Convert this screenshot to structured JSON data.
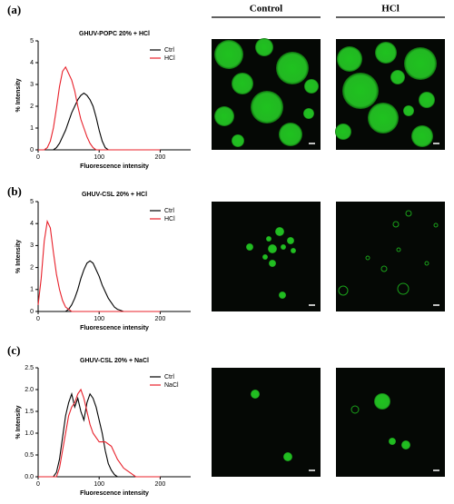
{
  "figure": {
    "panel_labels": [
      "(a)",
      "(b)",
      "(c)"
    ],
    "column_headers": [
      "Control",
      "HCl"
    ]
  },
  "chart_data": [
    {
      "type": "line",
      "title": "GHUV-POPC 20% + HCl",
      "x_label": "Fluorescence intensity",
      "y_label": "% Intensity",
      "xlim": [
        0,
        250
      ],
      "xticks": [
        0,
        100,
        200
      ],
      "ylim": [
        0,
        5
      ],
      "yticks": [
        0,
        1,
        2,
        3,
        4,
        5
      ],
      "legend": "upper right",
      "x": [
        0,
        5,
        10,
        15,
        20,
        25,
        30,
        35,
        40,
        45,
        50,
        55,
        60,
        65,
        70,
        75,
        80,
        85,
        90,
        95,
        100,
        105,
        110,
        115,
        120,
        125,
        130,
        135,
        140,
        145,
        150,
        155,
        160,
        165,
        170,
        175,
        180,
        185,
        190,
        195,
        200
      ],
      "series": [
        {
          "name": "Ctrl",
          "color": "#000000",
          "values": [
            0,
            0,
            0,
            0,
            0,
            0,
            0.1,
            0.3,
            0.6,
            0.9,
            1.3,
            1.7,
            2.0,
            2.3,
            2.5,
            2.6,
            2.5,
            2.3,
            2.0,
            1.5,
            0.9,
            0.4,
            0.1,
            0,
            0,
            0,
            0,
            0,
            0,
            0,
            0,
            0,
            0,
            0,
            0,
            0,
            0,
            0,
            0,
            0,
            0
          ]
        },
        {
          "name": "HCl",
          "color": "#e8202a",
          "values": [
            0,
            0,
            0,
            0.1,
            0.4,
            1.0,
            1.9,
            2.9,
            3.6,
            3.8,
            3.5,
            3.2,
            2.7,
            2.0,
            1.4,
            1.0,
            0.6,
            0.3,
            0.1,
            0,
            0,
            0,
            0,
            0,
            0,
            0,
            0,
            0,
            0,
            0,
            0,
            0,
            0,
            0,
            0,
            0,
            0,
            0,
            0,
            0,
            0
          ]
        }
      ]
    },
    {
      "type": "line",
      "title": "GHUV-CSL 20% + HCl",
      "x_label": "Fluorescence intensity",
      "y_label": "% Intensity",
      "xlim": [
        0,
        250
      ],
      "xticks": [
        0,
        100,
        200
      ],
      "ylim": [
        0,
        5
      ],
      "yticks": [
        0,
        1,
        2,
        3,
        4,
        5
      ],
      "legend": "upper right",
      "x": [
        0,
        5,
        10,
        15,
        20,
        25,
        30,
        35,
        40,
        45,
        50,
        55,
        60,
        65,
        70,
        75,
        80,
        85,
        90,
        95,
        100,
        105,
        110,
        115,
        120,
        125,
        130,
        135,
        140,
        145,
        150,
        155,
        160,
        165,
        170,
        175,
        180,
        185,
        190,
        195,
        200
      ],
      "series": [
        {
          "name": "Ctrl",
          "color": "#000000",
          "values": [
            0,
            0,
            0,
            0,
            0,
            0,
            0,
            0,
            0,
            0,
            0.1,
            0.3,
            0.6,
            1.0,
            1.5,
            1.9,
            2.2,
            2.3,
            2.2,
            1.9,
            1.6,
            1.2,
            0.9,
            0.6,
            0.4,
            0.2,
            0.1,
            0.05,
            0,
            0,
            0,
            0,
            0,
            0,
            0,
            0,
            0,
            0,
            0,
            0,
            0
          ]
        },
        {
          "name": "HCl",
          "color": "#e8202a",
          "values": [
            0.3,
            1.5,
            3.2,
            4.1,
            3.8,
            2.7,
            1.7,
            1.0,
            0.5,
            0.2,
            0.1,
            0,
            0,
            0,
            0,
            0,
            0,
            0,
            0,
            0,
            0,
            0,
            0,
            0,
            0,
            0,
            0,
            0,
            0,
            0,
            0,
            0,
            0,
            0,
            0,
            0,
            0,
            0,
            0,
            0,
            0
          ]
        }
      ]
    },
    {
      "type": "line",
      "title": "GHUV-CSL 20% + NaCl",
      "x_label": "Fluorescence intensity",
      "y_label": "% Intensity",
      "xlim": [
        0,
        250
      ],
      "xticks": [
        0,
        100,
        200
      ],
      "ylim": [
        0,
        2.5
      ],
      "yticks": [
        {
          "value": 0,
          "label": "0.0"
        },
        0.5,
        {
          "value": 1,
          "label": "1.0"
        },
        1.5,
        {
          "value": 2,
          "label": "2.0"
        },
        2.5
      ],
      "legend": "upper right",
      "x": [
        0,
        5,
        10,
        15,
        20,
        25,
        30,
        35,
        40,
        45,
        50,
        55,
        60,
        65,
        70,
        75,
        80,
        85,
        90,
        95,
        100,
        105,
        110,
        115,
        120,
        125,
        130,
        135,
        140,
        145,
        150,
        155,
        160,
        165,
        170,
        175,
        180,
        185,
        190,
        195,
        200
      ],
      "series": [
        {
          "name": "Ctrl",
          "color": "#000000",
          "values": [
            0,
            0,
            0,
            0,
            0,
            0,
            0.1,
            0.4,
            0.9,
            1.4,
            1.7,
            1.9,
            1.6,
            1.8,
            1.5,
            1.3,
            1.7,
            1.9,
            1.8,
            1.6,
            1.3,
            1.0,
            0.6,
            0.3,
            0.15,
            0.05,
            0,
            0,
            0,
            0,
            0,
            0,
            0,
            0,
            0,
            0,
            0,
            0,
            0,
            0,
            0
          ]
        },
        {
          "name": "NaCl",
          "color": "#e8202a",
          "values": [
            0,
            0,
            0,
            0,
            0,
            0,
            0,
            0.2,
            0.6,
            1.0,
            1.4,
            1.6,
            1.7,
            1.9,
            2.0,
            1.8,
            1.5,
            1.2,
            1.0,
            0.9,
            0.8,
            0.8,
            0.8,
            0.75,
            0.7,
            0.55,
            0.4,
            0.3,
            0.2,
            0.15,
            0.1,
            0.05,
            0,
            0,
            0,
            0,
            0,
            0,
            0,
            0,
            0
          ]
        }
      ]
    }
  ]
}
